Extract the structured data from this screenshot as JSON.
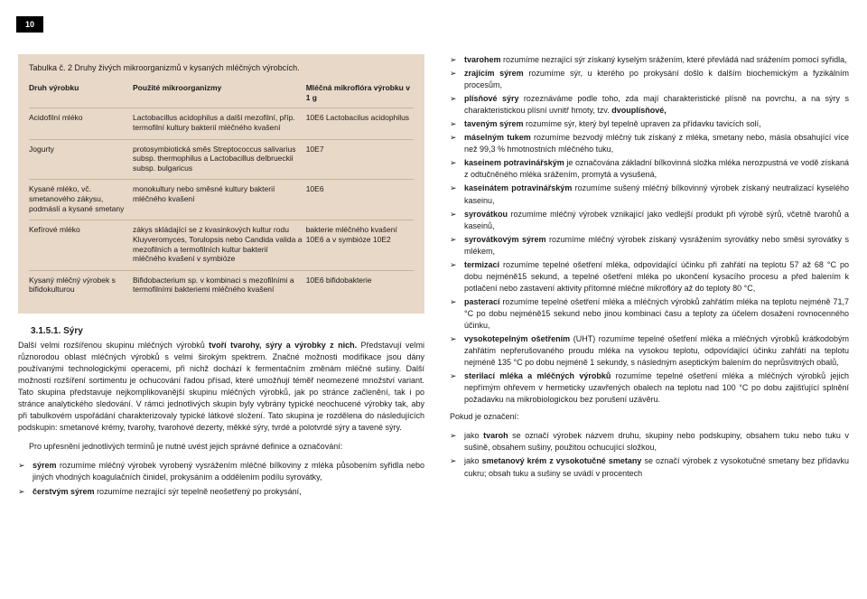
{
  "page_number": "10",
  "table": {
    "title": "Tabulka č. 2 Druhy živých mikroorganizmů v kysaných mléčných výrobcích.",
    "headers": [
      "Druh výrobku",
      "Použité mikroorganizmy",
      "Mléčná mikroflóra výrobku v 1 g"
    ],
    "rows": [
      {
        "c1": "Acidofilní mléko",
        "c2": "Lactobacillus acidophilus a další mezofilní, příp. termofilní kultury bakterií mléčného kvašení",
        "c3": "10E6 Lactobacilus acidophilus"
      },
      {
        "c1": "Jogurty",
        "c2": "protosymbiotická směs Streptococcus salivarius subsp. thermophilus a Lactobacillus delbrueckii subsp. bulgaricus",
        "c3": "10E7"
      },
      {
        "c1": "Kysané mléko, vč. smetanového zákysu, podmáslí a kysané smetany",
        "c2": "monokultury nebo směsné kultury bakterií mléčného kvašení",
        "c3": "10E6"
      },
      {
        "c1": "Kefírové mléko",
        "c2": "zákys skládající se z kvasinkových kultur rodu Kluyveromyces, Torulopsis nebo Candida valida a mezofilních a termofilních kultur bakterií mléčného kvašení v symbióze",
        "c3": "bakterie mléčného kvašení 10E6  a v symbióze 10E2"
      },
      {
        "c1": "Kysaný mléčný výrobek s bifidokulturou",
        "c2": "Bifidobacterium sp. v kombinaci s mezofilními a termofilními bakteriemi mléčného kvašení",
        "c3": "10E6 bifidobakterie"
      }
    ]
  },
  "section_heading": "3.1.5.1. Sýry",
  "left_para": "Další velmi rozšířenou skupinu mléčných výrobků <span class='b'>tvoří tvarohy, sýry a výrobky z nich.</span> Představují velmi různorodou oblast mléčných výrobků s velmi širokým spektrem. Značné možnosti modifikace jsou dány používanými technologickými operacemi, při nichž dochází k fermentačním změnám mléčné sušiny. Další možností rozšíření sortimentu je ochucování řadou přísad, které umožňují téměř neomezené množství variant. Tato skupina představuje nejkomplikovanější skupinu mléčných výrobků, jak po stránce začlenění, tak i po stránce analytického sledování. V rámci jednotlivých skupin byly vybrány typické neochucené výrobky tak, aby při tabulkovém uspořádání charakterizovaly typické látkové složení. Tato skupina je rozdělena do následujících podskupin: smetanové krémy, tvarohy, tvarohové dezerty, měkké sýry, tvrdé a polotvrdé sýry a tavené sýry.",
  "left_intro2": "Pro upřesnění jednotlivých termínů je nutné uvést jejich správné definice a označování:",
  "left_terms": [
    "<span class='b'>sýrem</span> rozumíme mléčný výrobek vyrobený vysrážením mléčné bílkoviny z mléka působením syřidla nebo jiných vhodných koagulačních činidel, prokysáním a oddělením podílu syrovátky,",
    "<span class='b'>čerstvým sýrem</span> rozumíme nezrající sýr tepelně neošetřený po prokysání,"
  ],
  "right_terms": [
    "<span class='b'>tvarohem</span> rozumíme nezrající sýr získaný kyselým srážením, které převládá nad srážením pomocí syřidla,",
    "<span class='b'>zrajícím sýrem</span> rozumíme sýr, u kterého po prokysání došlo k dalším biochemickým a fyzikálním procesům,",
    "<span class='b'>plísňové sýry</span> rozeznáváme podle toho, zda mají charakteristické plísně na povrchu, a na sýry s charakteristickou plísní uvnitř hmoty, tzv. <span class='b'>dvouplísňové,</span>",
    "<span class='b'>taveným sýrem</span> rozumíme sýr, který byl tepelně upraven za přídavku tavicích solí,",
    "<span class='b'>máselným tukem</span> rozumíme bezvodý mléčný tuk získaný z mléka, smetany nebo, másla obsahující více než 99,3 % hmotnostních mléčného tuku,",
    "<span class='b'>kaseinem potravinářským</span> je označována základní bílkovinná složka mléka nerozpustná ve vodě získaná z odtučněného mléka srážením, promytá a vysušená,",
    "<span class='b'>kaseinátem potravinářským</span> rozumíme sušený mléčný bílkovinný výrobek získaný neutralizací kyselého kaseinu,",
    "<span class='b'>syrovátkou</span> rozumíme mléčný výrobek vznikající jako vedlejší produkt při výrobě sýrů, včetně tvarohů a kaseinů,",
    "<span class='b'>syrovátkovým sýrem</span> rozumíme mléčný výrobek získaný vysrážením syrovátky nebo směsi syrovátky s mlékem,",
    "<span class='b'>termizací</span> rozumíme tepelné ošetření mléka, odpovídající účinku při zahřátí na teplotu 57 až 68 °C po dobu nejméně15 sekund, a tepelné ošetření mléka po ukončení kysacího procesu a před balením k potlačení nebo zastavení aktivity přítomné mléčné mikroflóry až do teploty 80 °C,",
    "<span class='b'>pasterací</span> rozumíme tepelné ošetření mléka a mléčných výrobků zahřátím mléka na teplotu nejméně 71,7 °C po dobu nejméně15 sekund nebo jinou kombinaci času a teploty za účelem dosažení rovnocenného účinku,",
    "<span class='b'>vysokotepelným ošetřením</span> (UHT) rozumíme tepelné ošetření mléka a mléčných výrobků krátkodobým zahřátím nepřerušovaného proudu mléka na vysokou teplotu, odpovídající účinku zahřátí na teplotu nejméně 135 °C po dobu nejméně 1 sekundy, s následným aseptickým balením do neprůsvitných obalů,",
    "<span class='b'>sterilací mléka a mléčných výrobků</span> rozumíme tepelné ošetření mléka a mléčných výrobků jejich nepřímým ohřevem v hermeticky uzavřených obalech na teplotu nad 100 °C po dobu zajišťující splnění požadavku na mikrobiologickou bez porušení uzávěru."
  ],
  "right_follow": "Pokud je označení:",
  "right_followlist": [
    "jako <span class='b'>tvaroh</span> se označí výrobek názvem druhu, skupiny nebo podskupiny, obsahem tuku nebo tuku v sušině, obsahem sušiny, použitou ochucující složkou,",
    "jako <span class='b'>smetanový krém z vysokotučné smetany</span> se označí výrobek z vysokotučné smetany bez přídavku cukru; obsah tuku a sušiny se uvádí v procentech"
  ],
  "colors": {
    "table_bg": "#e8d8c8",
    "table_rule": "#c9b49c",
    "pagenum_bg": "#000000",
    "pagenum_fg": "#ffffff",
    "text": "#1a1a1a"
  }
}
